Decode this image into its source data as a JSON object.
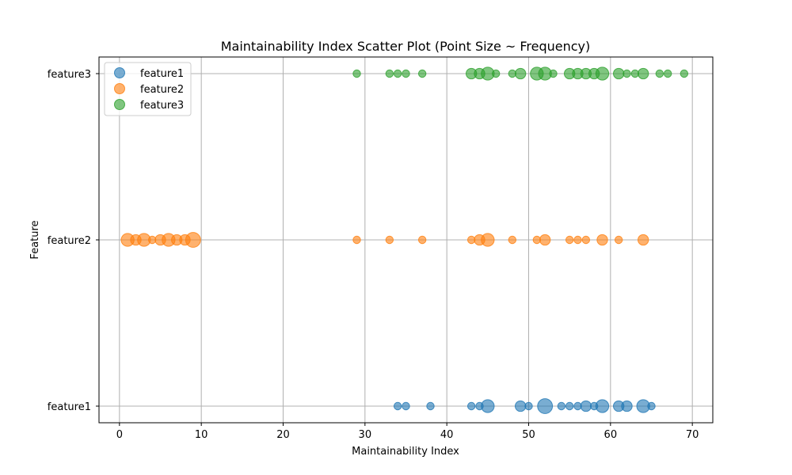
{
  "chart_data": {
    "type": "scatter",
    "title": "Maintainability Index Scatter Plot (Point Size ~ Frequency)",
    "xlabel": "Maintainability Index",
    "ylabel": "Feature",
    "xlim": [
      -2.5,
      72.5
    ],
    "x_ticks": [
      0,
      10,
      20,
      30,
      40,
      50,
      60,
      70
    ],
    "categories": [
      "feature1",
      "feature2",
      "feature3"
    ],
    "grid": true,
    "legend_position": "top-left",
    "series": [
      {
        "name": "feature1",
        "category": "feature1",
        "color": "#1f77b4",
        "points": [
          {
            "x": 34,
            "freq": 1
          },
          {
            "x": 35,
            "freq": 1
          },
          {
            "x": 38,
            "freq": 1
          },
          {
            "x": 43,
            "freq": 1
          },
          {
            "x": 44,
            "freq": 1
          },
          {
            "x": 45,
            "freq": 3
          },
          {
            "x": 49,
            "freq": 2
          },
          {
            "x": 50,
            "freq": 1
          },
          {
            "x": 52,
            "freq": 4
          },
          {
            "x": 54,
            "freq": 1
          },
          {
            "x": 55,
            "freq": 1
          },
          {
            "x": 56,
            "freq": 1
          },
          {
            "x": 57,
            "freq": 2
          },
          {
            "x": 58,
            "freq": 1
          },
          {
            "x": 59,
            "freq": 3
          },
          {
            "x": 61,
            "freq": 2
          },
          {
            "x": 62,
            "freq": 2
          },
          {
            "x": 64,
            "freq": 3
          },
          {
            "x": 65,
            "freq": 1
          }
        ]
      },
      {
        "name": "feature2",
        "category": "feature2",
        "color": "#ff7f0e",
        "points": [
          {
            "x": 1,
            "freq": 3
          },
          {
            "x": 2,
            "freq": 2
          },
          {
            "x": 3,
            "freq": 3
          },
          {
            "x": 4,
            "freq": 1
          },
          {
            "x": 5,
            "freq": 2
          },
          {
            "x": 6,
            "freq": 3
          },
          {
            "x": 7,
            "freq": 2
          },
          {
            "x": 8,
            "freq": 2
          },
          {
            "x": 9,
            "freq": 4
          },
          {
            "x": 29,
            "freq": 1
          },
          {
            "x": 33,
            "freq": 1
          },
          {
            "x": 37,
            "freq": 1
          },
          {
            "x": 43,
            "freq": 1
          },
          {
            "x": 44,
            "freq": 2
          },
          {
            "x": 45,
            "freq": 3
          },
          {
            "x": 48,
            "freq": 1
          },
          {
            "x": 51,
            "freq": 1
          },
          {
            "x": 52,
            "freq": 2
          },
          {
            "x": 55,
            "freq": 1
          },
          {
            "x": 56,
            "freq": 1
          },
          {
            "x": 57,
            "freq": 1
          },
          {
            "x": 59,
            "freq": 2
          },
          {
            "x": 61,
            "freq": 1
          },
          {
            "x": 64,
            "freq": 2
          }
        ]
      },
      {
        "name": "feature3",
        "category": "feature3",
        "color": "#2ca02c",
        "points": [
          {
            "x": 29,
            "freq": 1
          },
          {
            "x": 33,
            "freq": 1
          },
          {
            "x": 34,
            "freq": 1
          },
          {
            "x": 35,
            "freq": 1
          },
          {
            "x": 37,
            "freq": 1
          },
          {
            "x": 43,
            "freq": 2
          },
          {
            "x": 44,
            "freq": 2
          },
          {
            "x": 45,
            "freq": 3
          },
          {
            "x": 46,
            "freq": 1
          },
          {
            "x": 48,
            "freq": 1
          },
          {
            "x": 49,
            "freq": 2
          },
          {
            "x": 51,
            "freq": 3
          },
          {
            "x": 52,
            "freq": 3
          },
          {
            "x": 53,
            "freq": 1
          },
          {
            "x": 55,
            "freq": 2
          },
          {
            "x": 56,
            "freq": 2
          },
          {
            "x": 57,
            "freq": 2
          },
          {
            "x": 58,
            "freq": 2
          },
          {
            "x": 59,
            "freq": 3
          },
          {
            "x": 61,
            "freq": 2
          },
          {
            "x": 62,
            "freq": 1
          },
          {
            "x": 63,
            "freq": 1
          },
          {
            "x": 64,
            "freq": 2
          },
          {
            "x": 66,
            "freq": 1
          },
          {
            "x": 67,
            "freq": 1
          },
          {
            "x": 69,
            "freq": 1
          }
        ]
      }
    ]
  }
}
